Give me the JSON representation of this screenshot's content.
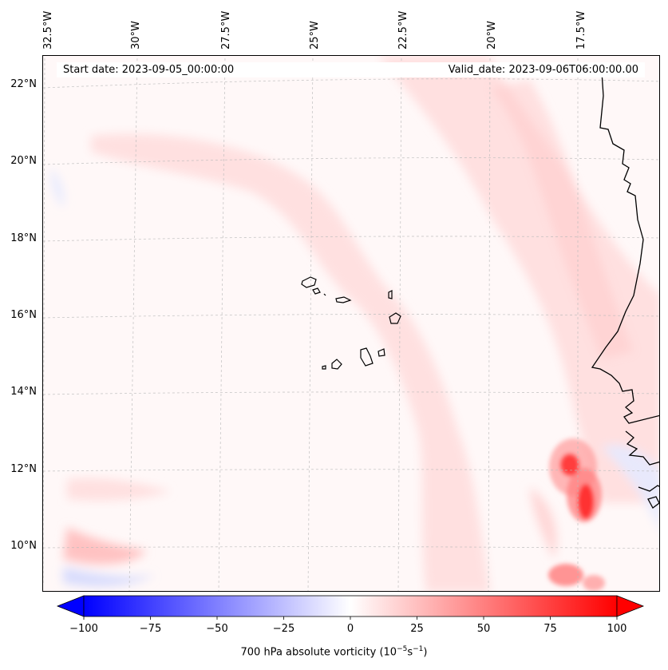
{
  "map": {
    "start_date": "Start date: 2023-09-05_00:00:00",
    "valid_date": "Valid_date: 2023-09-06T06:00:00.00",
    "longitude_labels": [
      "32.5°W",
      "30°W",
      "27.5°W",
      "25°W",
      "22.5°W",
      "20°W",
      "17.5°W"
    ],
    "latitude_labels": [
      "22°N",
      "20°N",
      "18°N",
      "16°N",
      "14°N",
      "12°N",
      "10°N"
    ],
    "colors": {
      "negative": "#0000ff",
      "neutral": "#ffffff",
      "positive": "#ff0000",
      "coastline": "#000000"
    }
  },
  "colorbar": {
    "ticks": [
      "−100",
      "−75",
      "−50",
      "−25",
      "0",
      "25",
      "50",
      "75",
      "100"
    ],
    "range": [
      -100,
      100
    ],
    "label_prefix": "700 hPa absolute vorticity (10",
    "label_exp1": "−5",
    "label_mid": "s",
    "label_exp2": "−1",
    "label_suffix": ")"
  }
}
